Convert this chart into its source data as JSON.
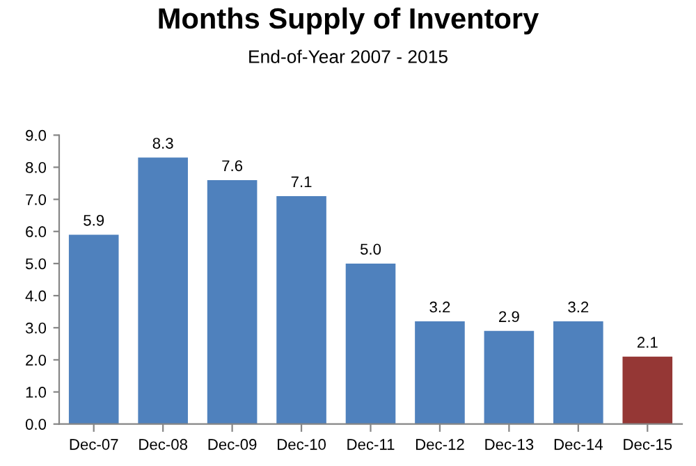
{
  "chart_data": {
    "type": "bar",
    "title": "Months Supply of Inventory",
    "subtitle": "End-of-Year 2007 - 2015",
    "categories": [
      "Dec-07",
      "Dec-08",
      "Dec-09",
      "Dec-10",
      "Dec-11",
      "Dec-12",
      "Dec-13",
      "Dec-14",
      "Dec-15"
    ],
    "values": [
      5.9,
      8.3,
      7.6,
      7.1,
      5.0,
      3.2,
      2.9,
      3.2,
      2.1
    ],
    "value_labels": [
      "5.9",
      "8.3",
      "7.6",
      "7.1",
      "5.0",
      "3.2",
      "2.9",
      "3.2",
      "2.1"
    ],
    "colors": [
      "#4f81bd",
      "#4f81bd",
      "#4f81bd",
      "#4f81bd",
      "#4f81bd",
      "#4f81bd",
      "#4f81bd",
      "#4f81bd",
      "#953735"
    ],
    "ylim": [
      0,
      9
    ],
    "yticks": [
      {
        "value": 0,
        "label": "0.0"
      },
      {
        "value": 1,
        "label": "1.0"
      },
      {
        "value": 2,
        "label": "2.0"
      },
      {
        "value": 3,
        "label": "3.0"
      },
      {
        "value": 4,
        "label": "4.0"
      },
      {
        "value": 5,
        "label": "5.0"
      },
      {
        "value": 6,
        "label": "6.0"
      },
      {
        "value": 7,
        "label": "7.0"
      },
      {
        "value": 8,
        "label": "8.0"
      },
      {
        "value": 9,
        "label": "9.0"
      }
    ],
    "grid": false,
    "legend": false
  }
}
